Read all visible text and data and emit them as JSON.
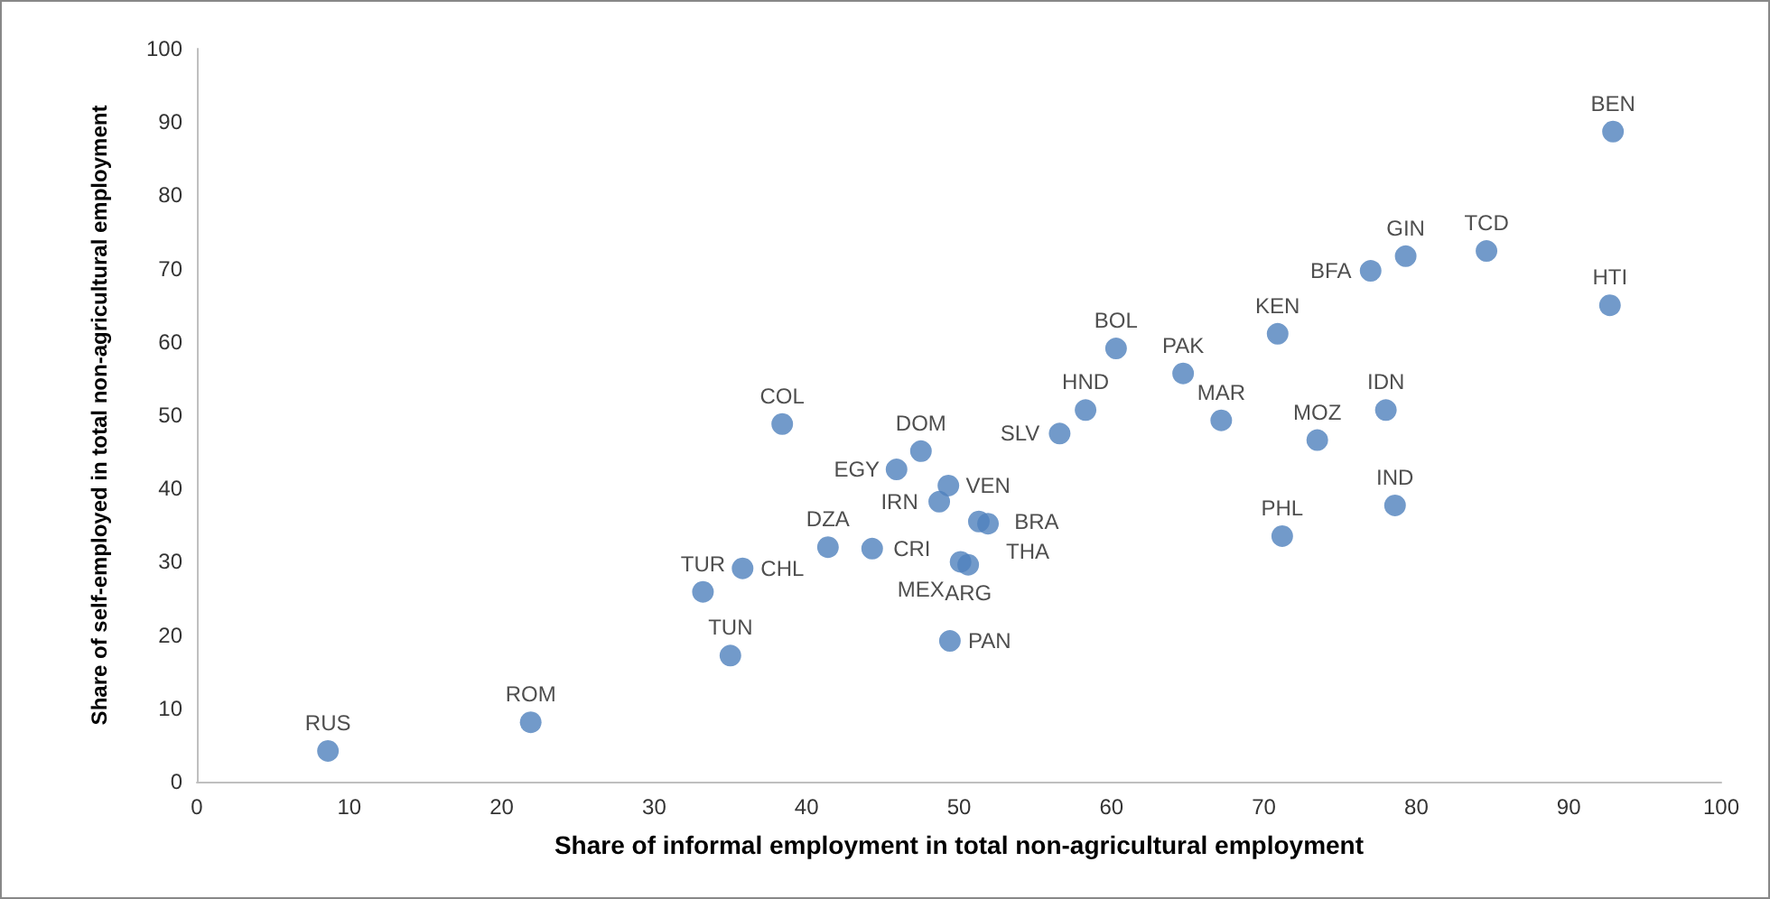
{
  "chart_data": {
    "type": "scatter",
    "xlabel": "Share of informal employment in total non-agricultural employment",
    "ylabel": "Share of self-employed in total non-agricultural employment",
    "x": [
      8.6,
      21.9,
      33.2,
      35.0,
      35.8,
      38.4,
      41.4,
      44.3,
      45.9,
      47.5,
      49.3,
      48.7,
      51.3,
      51.9,
      50.1,
      50.6,
      49.4,
      56.6,
      58.3,
      60.3,
      64.7,
      67.2,
      70.9,
      71.2,
      73.5,
      78.0,
      78.6,
      77.0,
      79.3,
      84.6,
      92.7,
      92.9
    ],
    "values": [
      4.2,
      8.1,
      25.9,
      17.2,
      29.1,
      48.8,
      32.0,
      31.8,
      42.6,
      45.1,
      40.4,
      38.2,
      35.5,
      35.2,
      30.0,
      29.6,
      19.2,
      47.5,
      50.7,
      59.1,
      55.7,
      49.3,
      61.1,
      33.5,
      46.6,
      50.7,
      37.7,
      69.7,
      71.7,
      72.4,
      65.0,
      88.7
    ],
    "value_labels": [
      "RUS",
      "ROM",
      "TUR",
      "TUN",
      "CHL",
      "COL",
      "DZA",
      "CRI",
      "EGY",
      "DOM",
      "VEN",
      "IRN",
      "BRA",
      "THA",
      "MEX",
      "ARG",
      "PAN",
      "SLV",
      "HND",
      "BOL",
      "PAK",
      "MAR",
      "KEN",
      "PHL",
      "MOZ",
      "IDN",
      "IND",
      "BFA",
      "GIN",
      "TCD",
      "HTI",
      "BEN"
    ],
    "color": "#4f81bd",
    "marker": "circle",
    "xlim": [
      0,
      100
    ],
    "xticks": [
      0,
      10,
      20,
      30,
      40,
      50,
      60,
      70,
      80,
      90,
      100
    ],
    "ylim": [
      0,
      100
    ],
    "yticks": [
      0,
      10,
      20,
      30,
      40,
      50,
      60,
      70,
      80,
      90,
      100
    ],
    "grid": false
  }
}
